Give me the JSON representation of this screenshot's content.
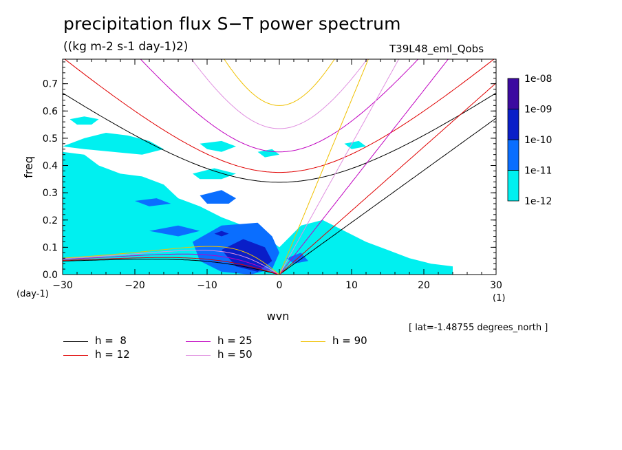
{
  "title": "precipitation flux S−T power spectrum",
  "units_label": "((kg m-2 s-1 day-1)2)",
  "run_label": "T39L48_eml_Qobs",
  "coord_label": "[ lat=-1.48755 degrees_north ]",
  "chart_data": {
    "type": "heatmap",
    "xlabel": "wvn",
    "ylabel": "freq",
    "x_unit_label": "(1)",
    "y_unit_label": "(day-1)",
    "xlim": [
      -30,
      30
    ],
    "ylim": [
      0,
      0.79
    ],
    "x_ticks": [
      -30,
      -20,
      -10,
      0,
      10,
      20,
      30
    ],
    "x_tick_labels": [
      "−30",
      "−20",
      "−10",
      "0",
      "10",
      "20",
      "30"
    ],
    "y_ticks": [
      0.0,
      0.1,
      0.2,
      0.3,
      0.4,
      0.5,
      0.6,
      0.7
    ],
    "y_tick_labels": [
      "0.0",
      "0.1",
      "0.2",
      "0.3",
      "0.4",
      "0.5",
      "0.6",
      "0.7"
    ],
    "colorbar": {
      "levels": [
        "1e-12",
        "1e-11",
        "1e-10",
        "1e-09",
        "1e-08"
      ],
      "colors": [
        "#00f0f0",
        "#0a6eff",
        "#0a1ec8",
        "#3c0aa0"
      ]
    },
    "shaded_regions": [
      {
        "level": 0,
        "points": [
          [
            -30,
            0.0
          ],
          [
            -30,
            0.45
          ],
          [
            -27,
            0.44
          ],
          [
            -25,
            0.4
          ],
          [
            -22,
            0.37
          ],
          [
            -19,
            0.36
          ],
          [
            -16,
            0.33
          ],
          [
            -14,
            0.28
          ],
          [
            -11,
            0.25
          ],
          [
            -8,
            0.21
          ],
          [
            -5,
            0.18
          ],
          [
            -2,
            0.14
          ],
          [
            0,
            0.1
          ],
          [
            3,
            0.18
          ],
          [
            6,
            0.2
          ],
          [
            9,
            0.16
          ],
          [
            12,
            0.12
          ],
          [
            15,
            0.09
          ],
          [
            18,
            0.06
          ],
          [
            21,
            0.04
          ],
          [
            24,
            0.03
          ],
          [
            24,
            0.0
          ]
        ]
      },
      {
        "level": 0,
        "points": [
          [
            -30,
            0.47
          ],
          [
            -27,
            0.5
          ],
          [
            -24,
            0.52
          ],
          [
            -21,
            0.51
          ],
          [
            -18,
            0.49
          ],
          [
            -16,
            0.46
          ],
          [
            -19,
            0.44
          ],
          [
            -23,
            0.45
          ],
          [
            -27,
            0.46
          ]
        ]
      },
      {
        "level": 0,
        "points": [
          [
            -29,
            0.57
          ],
          [
            -27,
            0.58
          ],
          [
            -25,
            0.57
          ],
          [
            -26,
            0.55
          ],
          [
            -28,
            0.55
          ]
        ]
      },
      {
        "level": 0,
        "points": [
          [
            -11,
            0.48
          ],
          [
            -8,
            0.49
          ],
          [
            -6,
            0.47
          ],
          [
            -8,
            0.45
          ],
          [
            -10,
            0.46
          ]
        ]
      },
      {
        "level": 0,
        "points": [
          [
            -12,
            0.37
          ],
          [
            -9,
            0.39
          ],
          [
            -6,
            0.37
          ],
          [
            -8,
            0.35
          ],
          [
            -11,
            0.35
          ]
        ]
      },
      {
        "level": 0,
        "points": [
          [
            9,
            0.48
          ],
          [
            11,
            0.49
          ],
          [
            12,
            0.47
          ],
          [
            10,
            0.46
          ]
        ]
      },
      {
        "level": 0,
        "points": [
          [
            -3,
            0.45
          ],
          [
            -1,
            0.46
          ],
          [
            0,
            0.44
          ],
          [
            -2,
            0.43
          ]
        ]
      },
      {
        "level": 1,
        "points": [
          [
            -20,
            0.27
          ],
          [
            -17,
            0.28
          ],
          [
            -15,
            0.26
          ],
          [
            -18,
            0.25
          ]
        ]
      },
      {
        "level": 1,
        "points": [
          [
            -11,
            0.29
          ],
          [
            -8,
            0.31
          ],
          [
            -6,
            0.28
          ],
          [
            -7,
            0.26
          ],
          [
            -10,
            0.26
          ]
        ]
      },
      {
        "level": 1,
        "points": [
          [
            -18,
            0.16
          ],
          [
            -14,
            0.18
          ],
          [
            -11,
            0.16
          ],
          [
            -14,
            0.14
          ]
        ]
      },
      {
        "level": 1,
        "points": [
          [
            -12,
            0.12
          ],
          [
            -8,
            0.18
          ],
          [
            -3,
            0.19
          ],
          [
            -1,
            0.14
          ],
          [
            0,
            0.08
          ],
          [
            -1,
            0.02
          ],
          [
            -4,
            0.0
          ],
          [
            -8,
            0.01
          ],
          [
            -11,
            0.05
          ]
        ]
      },
      {
        "level": 1,
        "points": [
          [
            1,
            0.06
          ],
          [
            3,
            0.08
          ],
          [
            4,
            0.05
          ],
          [
            2,
            0.04
          ]
        ]
      },
      {
        "level": 2,
        "points": [
          [
            -8,
            0.09
          ],
          [
            -5,
            0.13
          ],
          [
            -2,
            0.1
          ],
          [
            -1,
            0.05
          ],
          [
            -3,
            0.01
          ],
          [
            -6,
            0.03
          ]
        ]
      },
      {
        "level": 2,
        "points": [
          [
            -9,
            0.15
          ],
          [
            -8,
            0.16
          ],
          [
            -7,
            0.15
          ],
          [
            -8,
            0.14
          ]
        ]
      }
    ],
    "legend": {
      "placement": "bottom",
      "entries": [
        {
          "label": "h =  8",
          "color": "#000000"
        },
        {
          "label": "h = 12",
          "color": "#e00000"
        },
        {
          "label": "h = 25",
          "color": "#c000c0"
        },
        {
          "label": "h = 50",
          "color": "#e090e0"
        },
        {
          "label": "h = 90",
          "color": "#f0c000"
        }
      ]
    }
  }
}
